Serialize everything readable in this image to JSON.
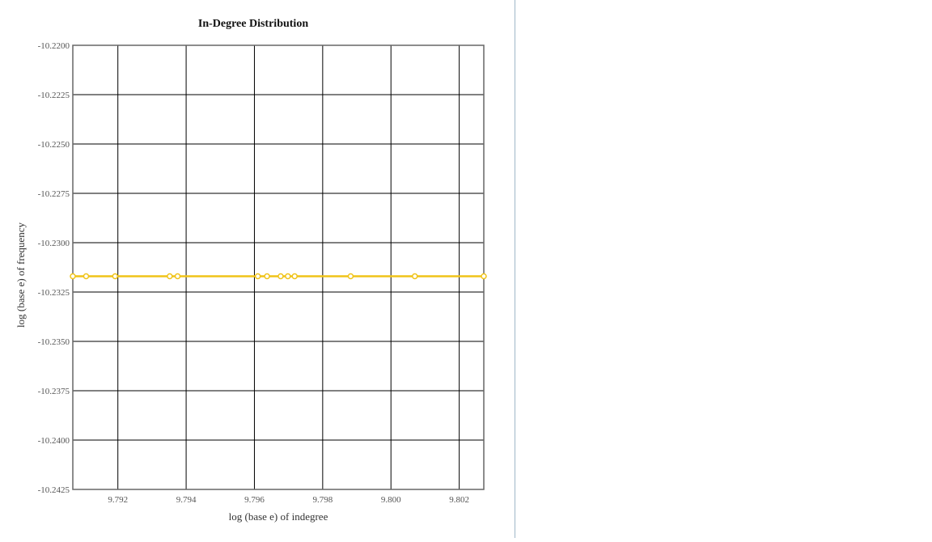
{
  "chart_data": {
    "type": "line",
    "title": "In-Degree Distribution",
    "xlabel": "log (base e) of indegree",
    "ylabel": "log (base e) of frequency",
    "xlim": [
      9.79068,
      9.80272
    ],
    "ylim": [
      -10.2425,
      -10.22
    ],
    "x_ticks": [
      9.792,
      9.794,
      9.796,
      9.798,
      9.8,
      9.802
    ],
    "x_tick_labels": [
      "9.792",
      "9.794",
      "9.796",
      "9.798",
      "9.800",
      "9.802"
    ],
    "y_ticks": [
      -10.22,
      -10.2225,
      -10.225,
      -10.2275,
      -10.23,
      -10.2325,
      -10.235,
      -10.2375,
      -10.24,
      -10.2425
    ],
    "y_tick_labels": [
      "-10.2200",
      "-10.2225",
      "-10.2250",
      "-10.2275",
      "-10.2300",
      "-10.2325",
      "-10.2350",
      "-10.2375",
      "-10.2400",
      "-10.2425"
    ],
    "grid": true,
    "series": [
      {
        "color": "#f0c419",
        "x": [
          9.79068,
          9.79107,
          9.79192,
          9.79352,
          9.79375,
          9.7961,
          9.79637,
          9.79677,
          9.79698,
          9.79718,
          9.79882,
          9.8007,
          9.80272
        ],
        "y": [
          -10.2317,
          -10.2317,
          -10.2317,
          -10.2317,
          -10.2317,
          -10.2317,
          -10.2317,
          -10.2317,
          -10.2317,
          -10.2317,
          -10.2317,
          -10.2317,
          -10.2317
        ]
      }
    ]
  }
}
